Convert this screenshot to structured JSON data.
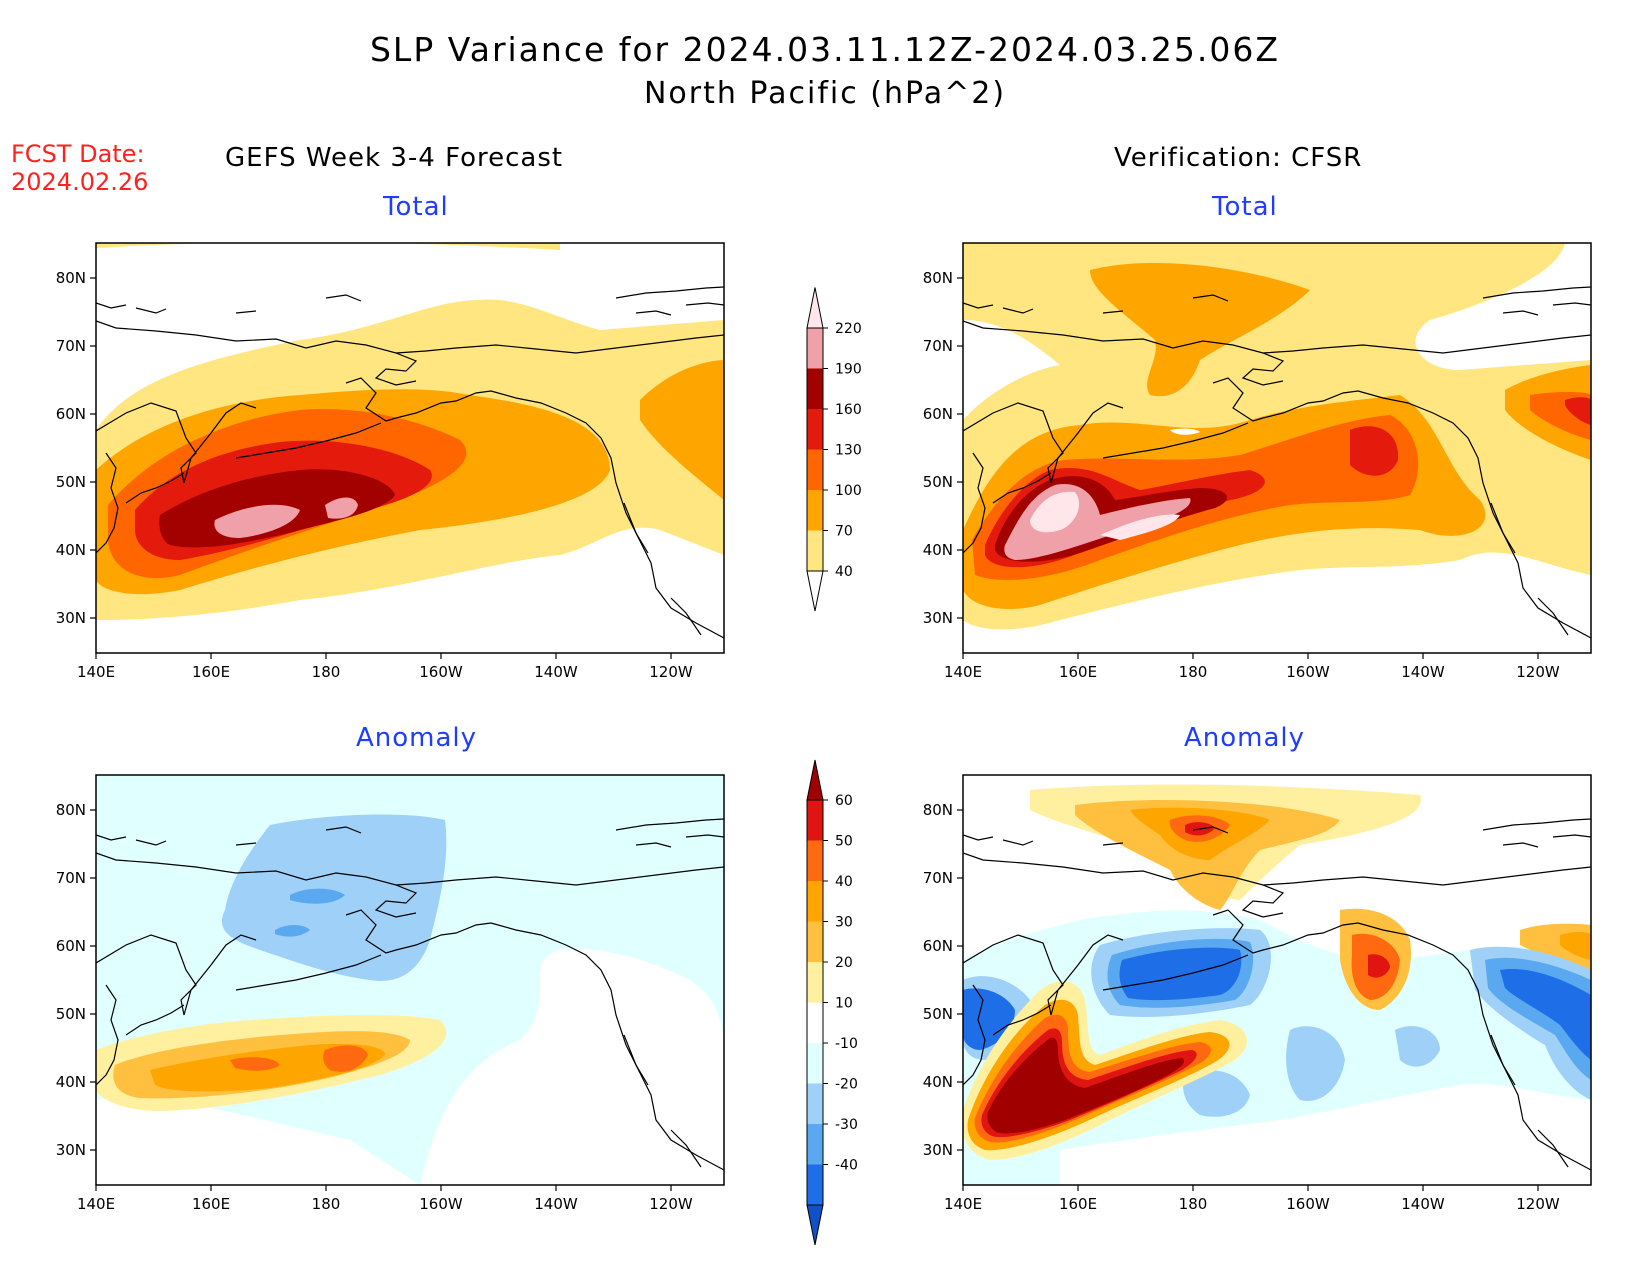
{
  "title": {
    "line1": "SLP Variance for 2024.03.11.12Z-2024.03.25.06Z",
    "line2": "North Pacific (hPa^2)"
  },
  "forecast_date": {
    "label": "FCST Date:",
    "value": "2024.02.26"
  },
  "columns": {
    "left": "GEFS Week 3-4 Forecast",
    "right": "Verification: CFSR"
  },
  "panel_titles": {
    "total": "Total",
    "anomaly": "Anomaly"
  },
  "axes": {
    "lat_ticks": [
      "80N",
      "70N",
      "60N",
      "50N",
      "40N",
      "30N"
    ],
    "lon_ticks": [
      "140E",
      "160E",
      "180",
      "160W",
      "140W",
      "120W"
    ]
  },
  "colorbars": {
    "total": {
      "levels": [
        "40",
        "70",
        "100",
        "130",
        "160",
        "190",
        "220"
      ],
      "colors": [
        "#ffe680",
        "#ffa500",
        "#ff6600",
        "#e31a0c",
        "#a30000",
        "#f0a0a8",
        "#ffe6ea"
      ]
    },
    "anomaly": {
      "levels": [
        "60",
        "50",
        "40",
        "30",
        "20",
        "10",
        "-10",
        "-20",
        "-30",
        "-40"
      ],
      "colors": [
        "#a00000",
        "#e01410",
        "#ff6a10",
        "#ffa500",
        "#ffc040",
        "#fff0a0",
        "#ffffff",
        "#e0ffff",
        "#9ed0f8",
        "#5aa8f0",
        "#1e6ee8",
        "#1050c8"
      ]
    }
  }
}
